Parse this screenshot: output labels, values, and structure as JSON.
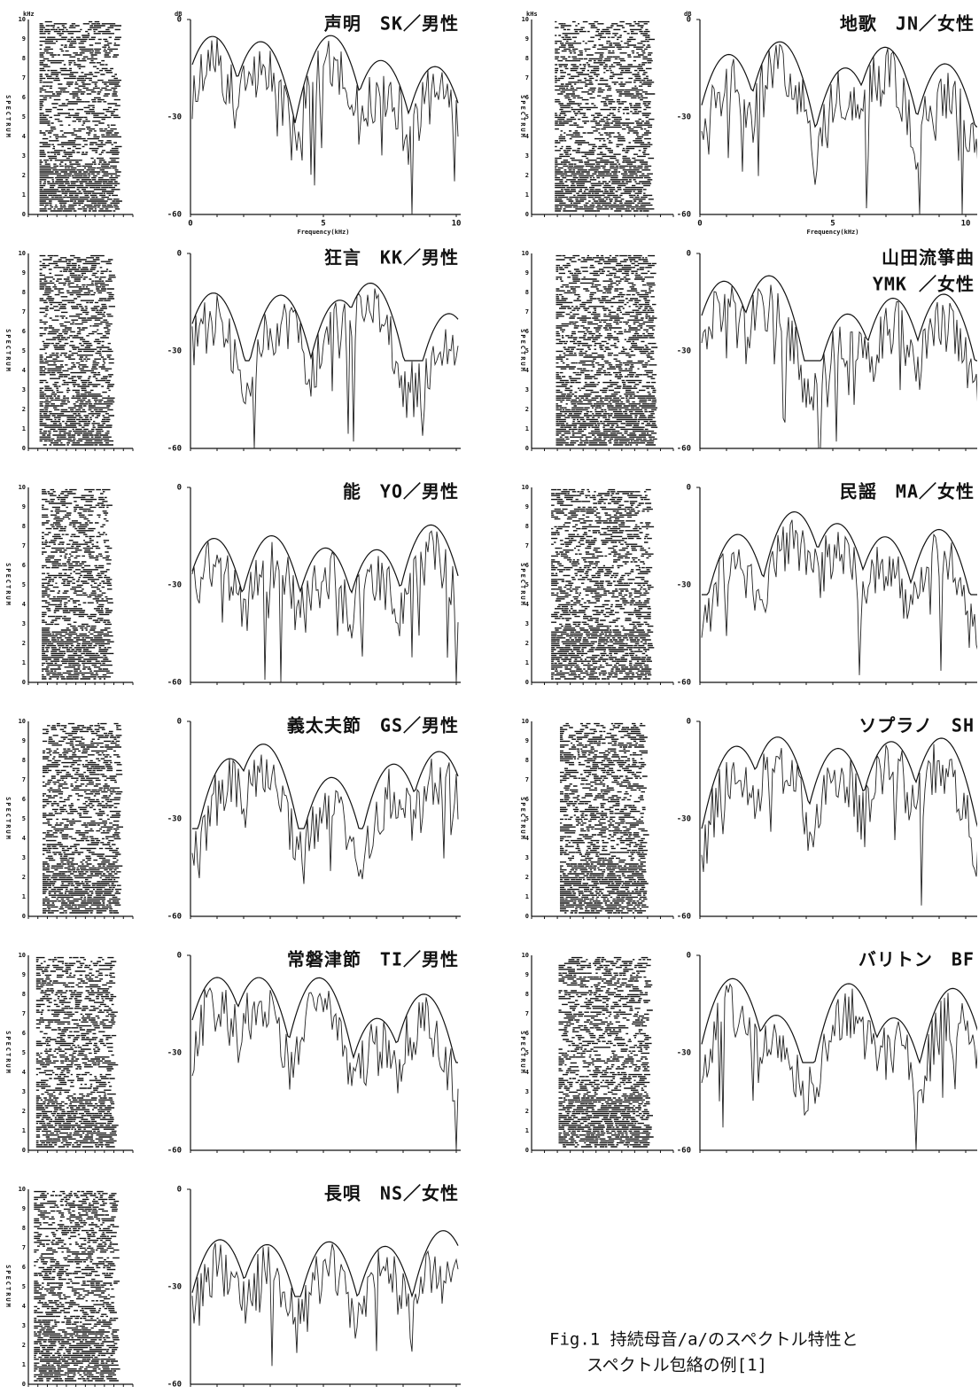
{
  "figure": {
    "columns": [
      [
        {
          "title": [
            "声明　SK／男性"
          ],
          "db_label": "dB",
          "khz_label": "kHz",
          "xticks": [
            "0",
            "5",
            "10"
          ],
          "xlabel": "Frequency(kHz)"
        },
        {
          "title": [
            "狂言　KK／男性"
          ]
        },
        {
          "title": [
            "能　YO／男性"
          ]
        },
        {
          "title": [
            "義太夫節　GS／男性"
          ]
        },
        {
          "title": [
            "常磐津節　TI／男性"
          ]
        },
        {
          "title": [
            "長唄　NS／女性"
          ]
        }
      ],
      [
        {
          "title": [
            "地歌　JN／女性"
          ],
          "db_label": "dB",
          "khz_label": "kHs",
          "xticks": [
            "0",
            "5",
            "10"
          ],
          "xlabel": "Frequency(kHz)"
        },
        {
          "title": [
            "山田流箏曲",
            "YMK ／女性"
          ]
        },
        {
          "title": [
            "民謡　MA／女性"
          ]
        },
        {
          "title": [
            "ソプラノ　SH"
          ]
        },
        {
          "title": [
            "バリトン　BF"
          ]
        }
      ]
    ],
    "spectrogram_ticks": [
      "0",
      "1",
      "2",
      "3",
      "4",
      "5",
      "6",
      "7",
      "8",
      "9",
      "10"
    ],
    "spectrogram_label": "SPECTRUM",
    "spectrum_yticks": [
      "0",
      "-30",
      "-60"
    ],
    "caption": [
      "Fig.1 持続母音/a/のスペクトル特性と",
      "スペクトル包絡の例[1]"
    ]
  }
}
